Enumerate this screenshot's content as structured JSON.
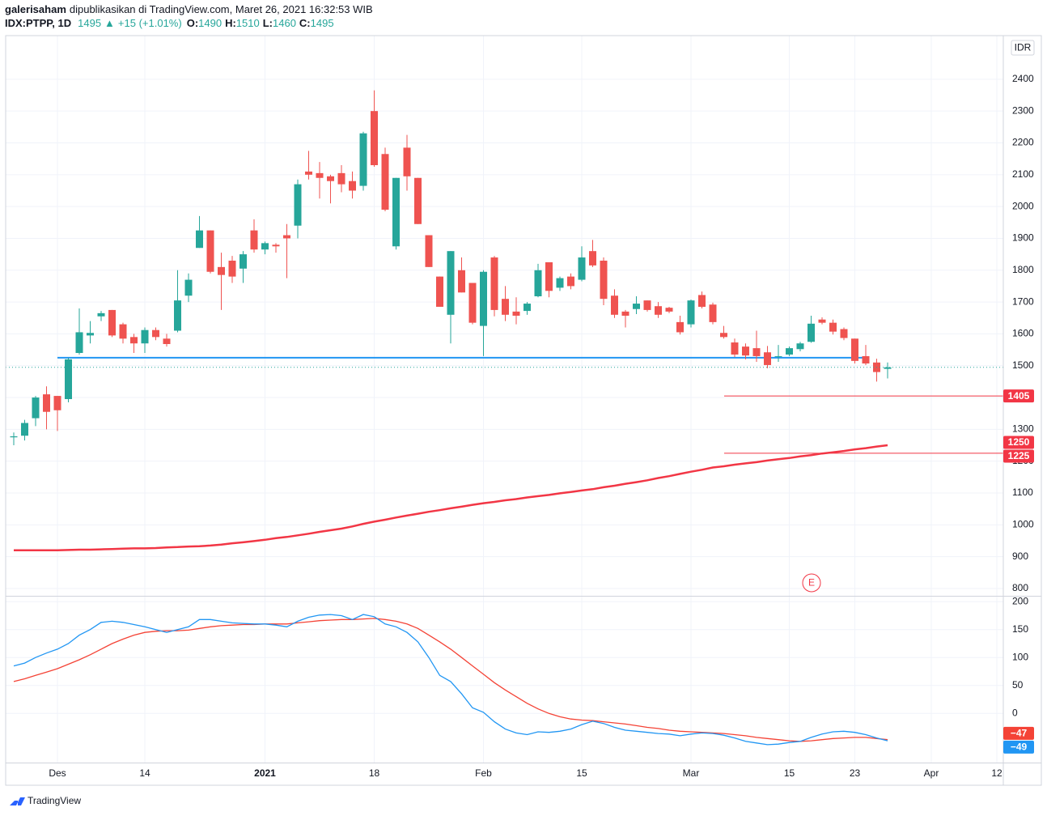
{
  "header": {
    "author": "galerisaham",
    "published": "dipublikasikan di TradingView.com, Maret 26, 2021 16:32:53 WIB",
    "symbol": "IDX:PTPP, 1D",
    "direction": "▲",
    "change": "+15 (+1.01%)",
    "o": "O:",
    "h": "H:",
    "l": "L:",
    "c": "C:"
  },
  "footer": {
    "brand": "TradingView"
  },
  "chart_data": [
    {
      "type": "candlestick",
      "currency": "IDR",
      "event": "E",
      "grid": true,
      "up_color": "#26a69a",
      "down_color": "#ef5350",
      "categories": [
        null,
        null,
        null,
        null,
        "Des",
        null,
        null,
        null,
        null,
        null,
        null,
        null,
        "14",
        null,
        null,
        null,
        null,
        null,
        null,
        null,
        null,
        null,
        null,
        "2021",
        null,
        null,
        null,
        null,
        null,
        null,
        null,
        null,
        null,
        "18",
        null,
        null,
        null,
        null,
        null,
        null,
        null,
        null,
        null,
        "Feb",
        null,
        null,
        null,
        null,
        null,
        null,
        null,
        null,
        "15",
        null,
        null,
        null,
        null,
        null,
        null,
        null,
        null,
        null,
        "Mar",
        null,
        null,
        null,
        null,
        null,
        null,
        null,
        null,
        "15",
        null,
        null,
        null,
        null,
        null,
        "23",
        null,
        null,
        null,
        null,
        null,
        null,
        "Apr",
        null,
        null,
        null,
        null,
        null,
        "12"
      ],
      "open": [
        1275,
        1280,
        1335,
        1410,
        1405,
        1395,
        1540,
        1595,
        1655,
        1675,
        1630,
        1590,
        1570,
        1612,
        1585,
        1610,
        1720,
        1870,
        1925,
        1810,
        1830,
        1805,
        1925,
        1865,
        1880,
        1910,
        1940,
        2110,
        2105,
        2095,
        2105,
        2080,
        2065,
        2300,
        2165,
        1875,
        2185,
        2090,
        1910,
        1780,
        1660,
        1800,
        1760,
        1625,
        1840,
        1710,
        1670,
        1672,
        1718,
        1825,
        1745,
        1780,
        1770,
        1860,
        1830,
        1720,
        1670,
        1678,
        1705,
        1687,
        1682,
        1637,
        1630,
        1722,
        1692,
        1603,
        1573,
        1560,
        1555,
        1542,
        1528,
        1535,
        1552,
        1575,
        1645,
        1635,
        1615,
        1585,
        1530,
        1510,
        1490,
        null,
        null,
        null,
        null,
        null,
        null,
        null,
        null,
        null,
        null
      ],
      "high": [
        1290,
        1330,
        1405,
        1435,
        1405,
        1525,
        1680,
        1640,
        1672,
        1675,
        1635,
        1600,
        1620,
        1620,
        1600,
        1800,
        1790,
        1970,
        1925,
        1855,
        1845,
        1860,
        1960,
        1890,
        1885,
        1945,
        2085,
        2175,
        2140,
        2100,
        2130,
        2110,
        2235,
        2365,
        2185,
        2090,
        2225,
        2090,
        1910,
        1780,
        1860,
        1840,
        1760,
        1800,
        1845,
        1750,
        1715,
        1700,
        1820,
        1825,
        1780,
        1790,
        1875,
        1895,
        1840,
        1740,
        1675,
        1718,
        1705,
        1700,
        1685,
        1657,
        1708,
        1733,
        1698,
        1625,
        1585,
        1570,
        1610,
        1562,
        1565,
        1560,
        1575,
        1657,
        1652,
        1645,
        1620,
        1585,
        1565,
        1522,
        1510,
        null,
        null,
        null,
        null,
        null,
        null,
        null,
        null,
        null,
        null
      ],
      "low": [
        1250,
        1265,
        1310,
        1300,
        1295,
        1385,
        1535,
        1570,
        1640,
        1590,
        1570,
        1540,
        1540,
        1580,
        1560,
        1605,
        1700,
        1870,
        1790,
        1675,
        1760,
        1760,
        1855,
        1850,
        1855,
        1775,
        1900,
        2085,
        2025,
        2010,
        2045,
        2025,
        2050,
        2125,
        1985,
        1865,
        2050,
        1945,
        1810,
        1685,
        1570,
        1730,
        1630,
        1530,
        1655,
        1640,
        1630,
        1660,
        1715,
        1715,
        1735,
        1740,
        1765,
        1810,
        1690,
        1650,
        1620,
        1662,
        1670,
        1650,
        1665,
        1598,
        1620,
        1680,
        1630,
        1585,
        1527,
        1520,
        1512,
        1492,
        1512,
        1530,
        1545,
        1572,
        1630,
        1598,
        1580,
        1507,
        1502,
        1450,
        1460,
        null,
        null,
        null,
        null,
        null,
        null,
        null,
        null,
        null,
        null
      ],
      "close": [
        1278,
        1320,
        1400,
        1355,
        1360,
        1520,
        1605,
        1603,
        1665,
        1595,
        1585,
        1570,
        1612,
        1590,
        1568,
        1705,
        1770,
        1925,
        1795,
        1785,
        1780,
        1850,
        1865,
        1885,
        1875,
        1900,
        2070,
        2100,
        2090,
        2080,
        2070,
        2050,
        2230,
        2130,
        1990,
        2090,
        2095,
        1945,
        1810,
        1685,
        1860,
        1730,
        1635,
        1795,
        1675,
        1660,
        1657,
        1695,
        1800,
        1735,
        1775,
        1750,
        1840,
        1815,
        1710,
        1660,
        1657,
        1695,
        1675,
        1660,
        1670,
        1605,
        1705,
        1685,
        1637,
        1590,
        1535,
        1532,
        1530,
        1502,
        1530,
        1555,
        1570,
        1632,
        1635,
        1607,
        1587,
        1515,
        1507,
        1480,
        1495,
        null,
        null,
        null,
        null,
        null,
        null,
        null,
        null,
        null,
        null
      ],
      "ma": {
        "color": "#f23645",
        "values": [
          920,
          920,
          920,
          920,
          920,
          921,
          922,
          922,
          923,
          924,
          925,
          926,
          926,
          927,
          929,
          930,
          932,
          933,
          935,
          938,
          942,
          945,
          949,
          953,
          958,
          962,
          967,
          972,
          978,
          983,
          988,
          995,
          1003,
          1010,
          1016,
          1023,
          1029,
          1035,
          1041,
          1046,
          1052,
          1057,
          1063,
          1068,
          1072,
          1077,
          1081,
          1086,
          1090,
          1094,
          1099,
          1103,
          1108,
          1112,
          1118,
          1123,
          1129,
          1134,
          1140,
          1147,
          1153,
          1160,
          1167,
          1173,
          1180,
          1184,
          1189,
          1193,
          1197,
          1202,
          1206,
          1210,
          1215,
          1219,
          1224,
          1228,
          1232,
          1237,
          1241,
          1246,
          1250,
          null,
          null,
          null,
          null,
          null,
          null,
          null,
          null,
          null,
          null
        ]
      },
      "support": {
        "value": 1525,
        "color": "#2196f3"
      },
      "levels": [
        {
          "value": 1405,
          "color": "#f23645"
        },
        {
          "value": 1225,
          "color": "#f23645"
        }
      ],
      "ylim": [
        777,
        2537
      ],
      "yticks": [
        800,
        900,
        1000,
        1100,
        1200,
        1300,
        1400,
        1500,
        1600,
        1700,
        1800,
        1900,
        2000,
        2100,
        2200,
        2300,
        2400
      ]
    },
    {
      "type": "line",
      "grid": true,
      "ylim": [
        -88,
        209
      ],
      "yticks": [
        200,
        150,
        100,
        50,
        0
      ],
      "series": [
        {
          "color": "#f44336",
          "values": [
            57,
            62,
            68,
            74,
            80,
            88,
            96,
            105,
            115,
            125,
            133,
            140,
            145,
            147,
            148,
            148,
            149,
            152,
            155,
            157,
            158,
            159,
            159,
            160,
            160,
            160,
            162,
            164,
            166,
            167,
            168,
            168,
            169,
            170,
            168,
            165,
            160,
            152,
            140,
            128,
            115,
            100,
            85,
            70,
            55,
            42,
            30,
            18,
            8,
            0,
            -6,
            -10,
            -12,
            -13,
            -15,
            -17,
            -19,
            -22,
            -25,
            -27,
            -30,
            -32,
            -33,
            -34,
            -35,
            -36,
            -38,
            -40,
            -43,
            -45,
            -47,
            -49,
            -50,
            -49,
            -47,
            -45,
            -44,
            -43,
            -43,
            -45,
            -47,
            null,
            null,
            null,
            null,
            null,
            null,
            null,
            null,
            null,
            null
          ],
          "value_labels": [
            null,
            null,
            null,
            null,
            null,
            null,
            null,
            null,
            null,
            null,
            null,
            null,
            null,
            null,
            null,
            null,
            null,
            null,
            null,
            null,
            null,
            null,
            null,
            null,
            null,
            null,
            null,
            null,
            null,
            null,
            null,
            null,
            null,
            null,
            null,
            null,
            null,
            null,
            null,
            null,
            null,
            null,
            null,
            null,
            null,
            null,
            null,
            null,
            null,
            null,
            null,
            null,
            null,
            null,
            null,
            null,
            null,
            null,
            null,
            null,
            null,
            null,
            null,
            null,
            null,
            null,
            null,
            null,
            null,
            null,
            null,
            null,
            null,
            null,
            null,
            null,
            null,
            null,
            null,
            null,
            "−47",
            null,
            null,
            null,
            null,
            null,
            null,
            null,
            null,
            null,
            null
          ]
        },
        {
          "color": "#2196f3",
          "values": [
            85,
            90,
            100,
            108,
            115,
            125,
            140,
            150,
            163,
            165,
            163,
            159,
            155,
            150,
            145,
            150,
            155,
            168,
            168,
            165,
            162,
            161,
            160,
            160,
            158,
            155,
            165,
            172,
            176,
            177,
            175,
            168,
            177,
            173,
            160,
            155,
            145,
            128,
            100,
            68,
            57,
            35,
            10,
            2,
            -15,
            -28,
            -35,
            -38,
            -33,
            -34,
            -32,
            -28,
            -20,
            -14,
            -18,
            -25,
            -30,
            -32,
            -34,
            -36,
            -37,
            -40,
            -37,
            -35,
            -36,
            -39,
            -44,
            -50,
            -53,
            -56,
            -55,
            -52,
            -50,
            -43,
            -37,
            -33,
            -32,
            -34,
            -38,
            -44,
            -49,
            null,
            null,
            null,
            null,
            null,
            null,
            null,
            null,
            null,
            null
          ],
          "value_labels": [
            null,
            null,
            null,
            null,
            null,
            null,
            null,
            null,
            null,
            null,
            null,
            null,
            null,
            null,
            null,
            null,
            null,
            null,
            null,
            null,
            null,
            null,
            null,
            null,
            null,
            null,
            null,
            null,
            null,
            null,
            null,
            null,
            null,
            null,
            null,
            null,
            null,
            null,
            null,
            null,
            null,
            null,
            null,
            null,
            null,
            null,
            null,
            null,
            null,
            null,
            null,
            null,
            null,
            null,
            null,
            null,
            null,
            null,
            null,
            null,
            null,
            null,
            null,
            null,
            null,
            null,
            null,
            null,
            null,
            null,
            null,
            null,
            null,
            null,
            null,
            null,
            null,
            null,
            null,
            null,
            "−49",
            null,
            null,
            null,
            null,
            null,
            null,
            null,
            null,
            null,
            null
          ]
        }
      ]
    }
  ]
}
